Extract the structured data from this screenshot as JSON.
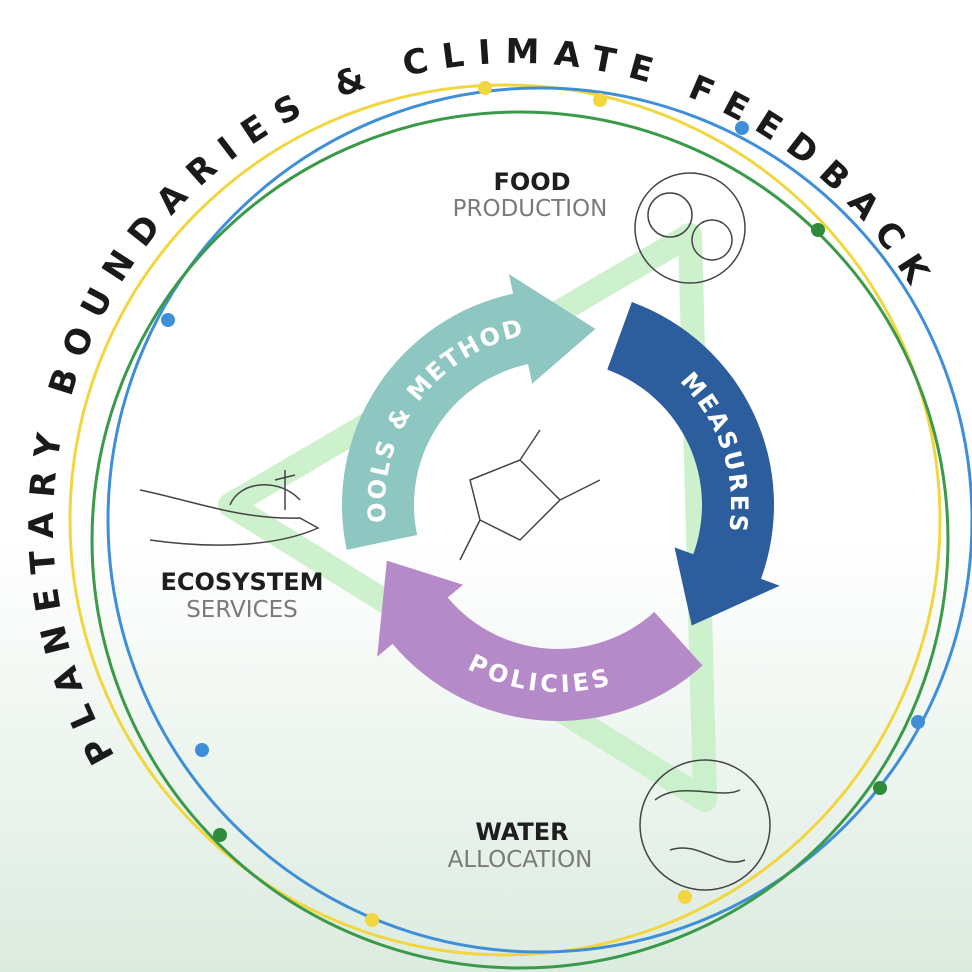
{
  "title": "PLANETARY BOUNDARIES & CLIMATE FEEDBACKS",
  "nodes": [
    {
      "title": "FOOD",
      "subtitle": "PRODUCTION"
    },
    {
      "title": "ECOSYSTEM",
      "subtitle": "SERVICES"
    },
    {
      "title": "WATER",
      "subtitle": "ALLOCATION"
    }
  ],
  "cycle": [
    "TOOLS & METHODS",
    "MEASURES",
    "POLICIES"
  ]
}
